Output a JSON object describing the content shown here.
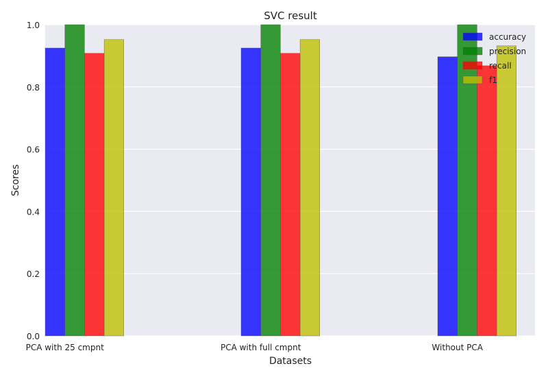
{
  "chart_data": {
    "type": "bar",
    "title": "SVC result",
    "xlabel": "Datasets",
    "ylabel": "Scores",
    "ylim": [
      0,
      1.0
    ],
    "yticks": [
      "0.0",
      "0.2",
      "0.4",
      "0.6",
      "0.8",
      "1.0"
    ],
    "categories": [
      "PCA with 25 cmpnt",
      "PCA with full cmpnt",
      "Without PCA"
    ],
    "series": [
      {
        "name": "accuracy",
        "color": "#0000ff",
        "values": [
          0.925,
          0.925,
          0.897
        ]
      },
      {
        "name": "precision",
        "color": "#008000",
        "values": [
          1.0,
          1.0,
          1.0
        ]
      },
      {
        "name": "recall",
        "color": "#ff0000",
        "values": [
          0.908,
          0.908,
          0.868
        ]
      },
      {
        "name": "f1",
        "color": "#bfbf00",
        "values": [
          0.952,
          0.952,
          0.932
        ]
      }
    ],
    "legend": "top-right",
    "grid": true,
    "background": "#eaeaf2"
  }
}
